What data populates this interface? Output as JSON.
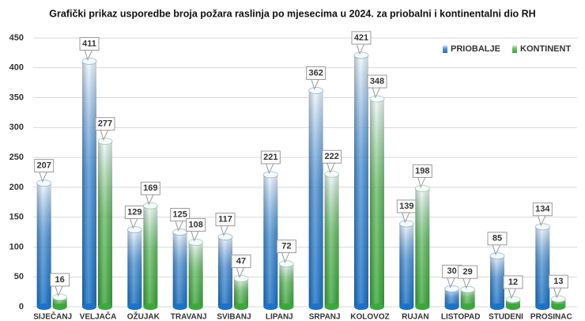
{
  "chart_data": {
    "type": "bar",
    "title": "Grafički prikaz usporedbe broja požara raslinja po mjesecima u 2024. za priobalni i kontinentalni dio RH",
    "categories": [
      "SIJEČANJ",
      "VELJAČA",
      "OŽUJAK",
      "TRAVANJ",
      "SVIBANJ",
      "LIPANJ",
      "SRPANJ",
      "KOLOVOZ",
      "RUJAN",
      "LISTOPAD",
      "STUDENI",
      "PROSINAC"
    ],
    "series": [
      {
        "name": "PRIOBALJE",
        "color": "#1a73c8",
        "values": [
          207,
          411,
          129,
          125,
          117,
          221,
          362,
          421,
          139,
          30,
          85,
          134
        ]
      },
      {
        "name": "KONTINENT",
        "color": "#3aa83a",
        "values": [
          16,
          277,
          169,
          108,
          47,
          72,
          222,
          348,
          198,
          29,
          12,
          13
        ]
      }
    ],
    "ylim": [
      0,
      450
    ],
    "yticks": [
      0,
      50,
      100,
      150,
      200,
      250,
      300,
      350,
      400,
      450
    ],
    "grid": true,
    "legend": "top-right"
  }
}
